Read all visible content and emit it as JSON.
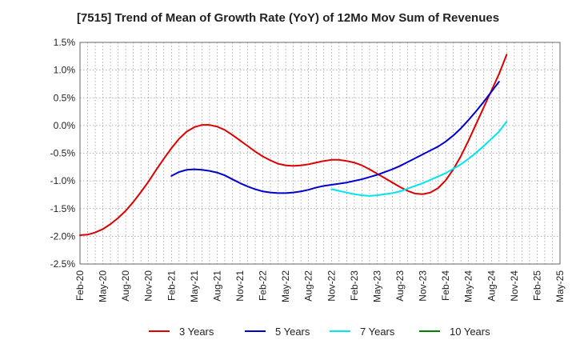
{
  "chart_data": {
    "type": "line",
    "title": "[7515]  Trend of Mean of Growth Rate (YoY) of 12Mo Mov Sum of Revenues",
    "xlabel": "",
    "ylabel": "",
    "ylim": [
      -2.5,
      1.5
    ],
    "grid": true,
    "legend_position": "bottom",
    "x_categories": [
      "Feb-20",
      "May-20",
      "Aug-20",
      "Nov-20",
      "Feb-21",
      "May-21",
      "Aug-21",
      "Nov-21",
      "Feb-22",
      "May-22",
      "Aug-22",
      "Nov-22",
      "Feb-23",
      "May-23",
      "Aug-23",
      "Nov-23",
      "Feb-24",
      "May-24",
      "Aug-24",
      "Nov-24",
      "Feb-25",
      "May-25"
    ],
    "y_ticks": [
      1.5,
      1.0,
      0.5,
      0.0,
      -0.5,
      -1.0,
      -1.5,
      -2.0,
      -2.5
    ],
    "y_tick_labels": [
      "1.5%",
      "1.0%",
      "0.5%",
      "0.0%",
      "-0.5%",
      "-1.0%",
      "-1.5%",
      "-2.0%",
      "-2.5%"
    ],
    "series": [
      {
        "name": "3 Years",
        "color": "#dd0000",
        "points": [
          [
            "Feb-20",
            -1.98
          ],
          [
            "Mar-20",
            -1.97
          ],
          [
            "Apr-20",
            -1.93
          ],
          [
            "May-20",
            -1.87
          ],
          [
            "Jun-20",
            -1.78
          ],
          [
            "Jul-20",
            -1.67
          ],
          [
            "Aug-20",
            -1.54
          ],
          [
            "Sep-20",
            -1.38
          ],
          [
            "Oct-20",
            -1.2
          ],
          [
            "Nov-20",
            -1.01
          ],
          [
            "Dec-20",
            -0.8
          ],
          [
            "Jan-21",
            -0.6
          ],
          [
            "Feb-21",
            -0.41
          ],
          [
            "Mar-21",
            -0.24
          ],
          [
            "Apr-21",
            -0.11
          ],
          [
            "May-21",
            -0.03
          ],
          [
            "Jun-21",
            0.01
          ],
          [
            "Jul-21",
            0.01
          ],
          [
            "Aug-21",
            -0.02
          ],
          [
            "Sep-21",
            -0.08
          ],
          [
            "Oct-21",
            -0.17
          ],
          [
            "Nov-21",
            -0.27
          ],
          [
            "Dec-21",
            -0.37
          ],
          [
            "Jan-22",
            -0.47
          ],
          [
            "Feb-22",
            -0.56
          ],
          [
            "Mar-22",
            -0.63
          ],
          [
            "Apr-22",
            -0.69
          ],
          [
            "May-22",
            -0.72
          ],
          [
            "Jun-22",
            -0.73
          ],
          [
            "Jul-22",
            -0.72
          ],
          [
            "Aug-22",
            -0.7
          ],
          [
            "Sep-22",
            -0.67
          ],
          [
            "Oct-22",
            -0.64
          ],
          [
            "Nov-22",
            -0.62
          ],
          [
            "Dec-22",
            -0.62
          ],
          [
            "Jan-23",
            -0.64
          ],
          [
            "Feb-23",
            -0.67
          ],
          [
            "Mar-23",
            -0.72
          ],
          [
            "Apr-23",
            -0.79
          ],
          [
            "May-23",
            -0.87
          ],
          [
            "Jun-23",
            -0.95
          ],
          [
            "Jul-23",
            -1.03
          ],
          [
            "Aug-23",
            -1.11
          ],
          [
            "Sep-23",
            -1.18
          ],
          [
            "Oct-23",
            -1.23
          ],
          [
            "Nov-23",
            -1.24
          ],
          [
            "Dec-23",
            -1.21
          ],
          [
            "Jan-24",
            -1.13
          ],
          [
            "Feb-24",
            -0.99
          ],
          [
            "Mar-24",
            -0.79
          ],
          [
            "Apr-24",
            -0.55
          ],
          [
            "May-24",
            -0.27
          ],
          [
            "Jun-24",
            0.03
          ],
          [
            "Jul-24",
            0.33
          ],
          [
            "Aug-24",
            0.63
          ],
          [
            "Sep-24",
            0.93
          ],
          [
            "Oct-24",
            1.28
          ]
        ]
      },
      {
        "name": "5 Years",
        "color": "#0000cc",
        "points": [
          [
            "Feb-21",
            -0.91
          ],
          [
            "Mar-21",
            -0.84
          ],
          [
            "Apr-21",
            -0.8
          ],
          [
            "May-21",
            -0.79
          ],
          [
            "Jun-21",
            -0.8
          ],
          [
            "Jul-21",
            -0.82
          ],
          [
            "Aug-21",
            -0.85
          ],
          [
            "Sep-21",
            -0.9
          ],
          [
            "Oct-21",
            -0.97
          ],
          [
            "Nov-21",
            -1.04
          ],
          [
            "Dec-21",
            -1.1
          ],
          [
            "Jan-22",
            -1.15
          ],
          [
            "Feb-22",
            -1.19
          ],
          [
            "Mar-22",
            -1.21
          ],
          [
            "Apr-22",
            -1.22
          ],
          [
            "May-22",
            -1.22
          ],
          [
            "Jun-22",
            -1.21
          ],
          [
            "Jul-22",
            -1.19
          ],
          [
            "Aug-22",
            -1.16
          ],
          [
            "Sep-22",
            -1.12
          ],
          [
            "Oct-22",
            -1.09
          ],
          [
            "Nov-22",
            -1.07
          ],
          [
            "Dec-22",
            -1.05
          ],
          [
            "Jan-23",
            -1.03
          ],
          [
            "Feb-23",
            -1.0
          ],
          [
            "Mar-23",
            -0.97
          ],
          [
            "Apr-23",
            -0.93
          ],
          [
            "May-23",
            -0.89
          ],
          [
            "Jun-23",
            -0.84
          ],
          [
            "Jul-23",
            -0.79
          ],
          [
            "Aug-23",
            -0.73
          ],
          [
            "Sep-23",
            -0.66
          ],
          [
            "Oct-23",
            -0.59
          ],
          [
            "Nov-23",
            -0.52
          ],
          [
            "Dec-23",
            -0.45
          ],
          [
            "Jan-24",
            -0.38
          ],
          [
            "Feb-24",
            -0.29
          ],
          [
            "Mar-24",
            -0.18
          ],
          [
            "Apr-24",
            -0.05
          ],
          [
            "May-24",
            0.1
          ],
          [
            "Jun-24",
            0.26
          ],
          [
            "Jul-24",
            0.43
          ],
          [
            "Aug-24",
            0.61
          ],
          [
            "Sep-24",
            0.79
          ]
        ]
      },
      {
        "name": "7 Years",
        "color": "#00e5ee",
        "points": [
          [
            "Nov-22",
            -1.15
          ],
          [
            "Dec-22",
            -1.18
          ],
          [
            "Jan-23",
            -1.21
          ],
          [
            "Feb-23",
            -1.24
          ],
          [
            "Mar-23",
            -1.26
          ],
          [
            "Apr-23",
            -1.27
          ],
          [
            "May-23",
            -1.26
          ],
          [
            "Jun-23",
            -1.24
          ],
          [
            "Jul-23",
            -1.22
          ],
          [
            "Aug-23",
            -1.19
          ],
          [
            "Sep-23",
            -1.14
          ],
          [
            "Oct-23",
            -1.09
          ],
          [
            "Nov-23",
            -1.04
          ],
          [
            "Dec-23",
            -0.98
          ],
          [
            "Jan-24",
            -0.92
          ],
          [
            "Feb-24",
            -0.86
          ],
          [
            "Mar-24",
            -0.78
          ],
          [
            "Apr-24",
            -0.7
          ],
          [
            "May-24",
            -0.6
          ],
          [
            "Jun-24",
            -0.49
          ],
          [
            "Jul-24",
            -0.37
          ],
          [
            "Aug-24",
            -0.24
          ],
          [
            "Sep-24",
            -0.11
          ],
          [
            "Oct-24",
            0.07
          ]
        ]
      },
      {
        "name": "10 Years",
        "color": "#008000",
        "points": []
      }
    ]
  }
}
